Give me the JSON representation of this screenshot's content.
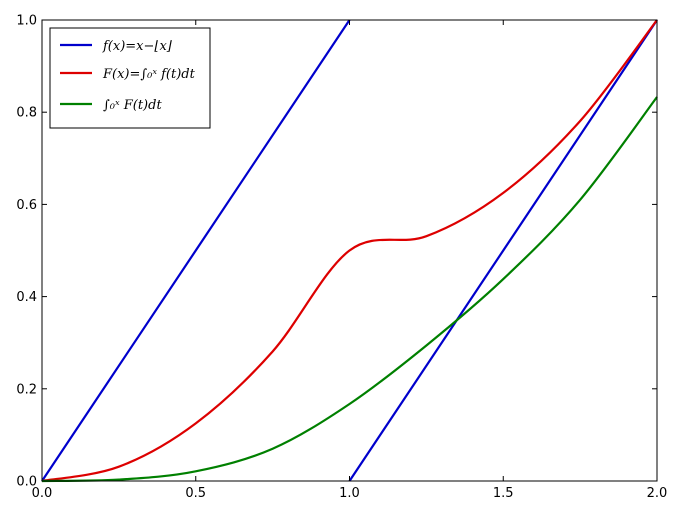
{
  "chart_data": {
    "type": "line",
    "title": "",
    "xlabel": "",
    "ylabel": "",
    "xlim": [
      0.0,
      2.0
    ],
    "ylim": [
      0.0,
      1.0
    ],
    "grid": false,
    "legend_position": "top-left",
    "x_ticks": [
      "0.0",
      "0.5",
      "1.0",
      "1.5",
      "2.0"
    ],
    "y_ticks": [
      "0.0",
      "0.2",
      "0.4",
      "0.6",
      "0.8",
      "1.0"
    ],
    "series": [
      {
        "name": "f(x)=x−⌊x⌋",
        "color": "#0000cc",
        "segments": [
          {
            "x": [
              0.0,
              1.0
            ],
            "y": [
              0.0,
              1.0
            ]
          },
          {
            "x": [
              1.0,
              2.0
            ],
            "y": [
              0.0,
              1.0
            ]
          }
        ]
      },
      {
        "name": "F(x)=∫₀ˣ f(t)dt",
        "color": "#dd0000",
        "segments": [
          {
            "x": [
              0.0,
              0.25,
              0.5,
              0.75,
              1.0,
              1.25,
              1.5,
              1.75,
              2.0
            ],
            "y": [
              0.0,
              0.031,
              0.125,
              0.281,
              0.5,
              0.531,
              0.625,
              0.781,
              1.0
            ]
          }
        ]
      },
      {
        "name": "∫₀ˣ F(t)dt",
        "color": "#008000",
        "segments": [
          {
            "x": [
              0.0,
              0.25,
              0.5,
              0.75,
              1.0,
              1.25,
              1.5,
              1.75,
              2.0
            ],
            "y": [
              0.0,
              0.003,
              0.021,
              0.07,
              0.167,
              0.294,
              0.438,
              0.61,
              0.833
            ]
          }
        ]
      }
    ]
  }
}
